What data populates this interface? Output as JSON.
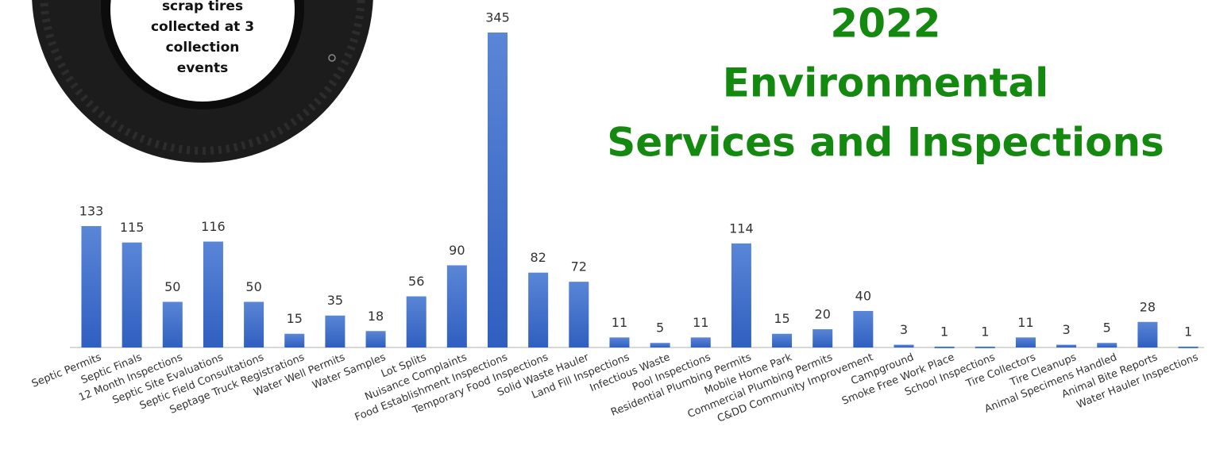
{
  "chart_data": {
    "type": "bar",
    "title_lines": [
      "2022",
      "Environmental",
      "Services and Inspections"
    ],
    "annotation_lines": [
      "scrap tires",
      "collected at 3",
      "collection",
      "events"
    ],
    "categories": [
      "Septic Permits",
      "Septic Finals",
      "12 Month Inspections",
      "Septic Site Evaluations",
      "Septic Field Consultations",
      "Septage Truck Registrations",
      "Water Well Permits",
      "Water Samples",
      "Lot Splits",
      "Nuisance Complaints",
      "Food Establishment Inspections",
      "Temporary Food Inspections",
      "Solid Waste Hauler",
      "Land Fill Inspections",
      "Infectious Waste",
      "Pool Inspections",
      "Residential Plumbing Permits",
      "Mobile Home Park",
      "Commercial Plumbing Permits",
      "C&DD Community Improvement",
      "Campground",
      "Smoke Free Work Place",
      "School Inspections",
      "Tire Collectors",
      "Tire Cleanups",
      "Animal Specimens Handled",
      "Animal Bite Reports",
      "Water Hauler Inspections"
    ],
    "values": [
      133,
      115,
      50,
      116,
      50,
      15,
      35,
      18,
      56,
      90,
      345,
      82,
      72,
      11,
      5,
      11,
      114,
      15,
      20,
      40,
      3,
      1,
      1,
      11,
      3,
      5,
      28,
      1
    ],
    "color": "#3f6fcc",
    "ylim": [
      0,
      345
    ]
  }
}
